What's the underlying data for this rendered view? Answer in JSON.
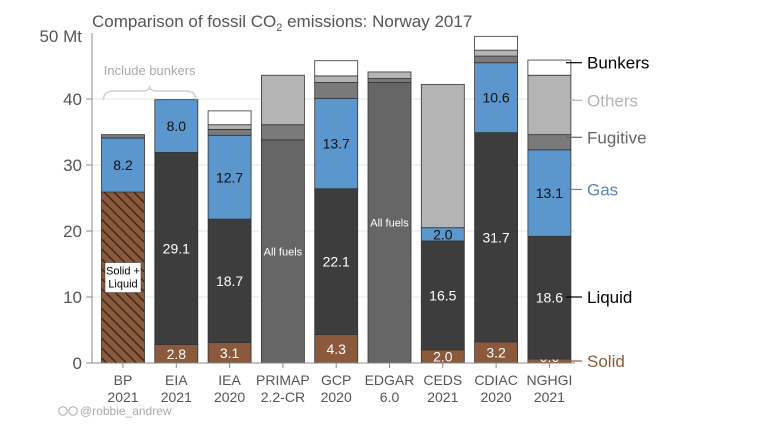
{
  "chart_data": {
    "type": "bar",
    "title_prefix": "Comparison of fossil CO",
    "title_sub": "2",
    "title_suffix": " emissions: Norway 2017",
    "y_unit_label": "50 Mt",
    "ylim": [
      0,
      50
    ],
    "yticks": [
      0,
      10,
      20,
      30,
      40
    ],
    "grid": true,
    "bracket_label": "Include bunkers",
    "credit": "@robbie_andrew",
    "categories": [
      {
        "line1": "BP",
        "line2": "2021"
      },
      {
        "line1": "EIA",
        "line2": "2021"
      },
      {
        "line1": "IEA",
        "line2": "2020"
      },
      {
        "line1": "PRIMAP",
        "line2": "2.2-CR"
      },
      {
        "line1": "GCP",
        "line2": "2020"
      },
      {
        "line1": "EDGAR",
        "line2": "6.0"
      },
      {
        "line1": "CEDS",
        "line2": "2021"
      },
      {
        "line1": "CDIAC",
        "line2": "2020"
      },
      {
        "line1": "NGHGI",
        "line2": "2021"
      }
    ],
    "legend": [
      {
        "name": "Bunkers",
        "color": "#000000",
        "value": 45.5
      },
      {
        "name": "Others",
        "color": "#b4b4b4",
        "value": 39.8
      },
      {
        "name": "Fugitive",
        "color": "#666666",
        "value": 34.2
      },
      {
        "name": "Gas",
        "color": "#5a86b0",
        "value": 26.3
      },
      {
        "name": "Liquid",
        "color": "#000000",
        "value": 10.0
      },
      {
        "name": "Solid",
        "color": "#8b5a3c",
        "value": 0.3
      }
    ],
    "colors": {
      "solid": "#8b5a3c",
      "liquid": "#3d3d3d",
      "gas": "#5b96cc",
      "fugitive": "#7a7a7a",
      "others": "#b4b4b4",
      "bunkers": "#ffffff",
      "allfuels_dark": "#666666",
      "allfuels_light": "#a8a8a8",
      "hatch_bg": "#8b5a3c",
      "hatch_line": "#3d2a1c"
    },
    "series": [
      {
        "cat": 0,
        "segments": [
          {
            "type": "solidliquid",
            "value": 25.9,
            "label": "Solid +\nLiquid"
          },
          {
            "type": "gas",
            "value": 8.2,
            "label": "8.2"
          },
          {
            "type": "fugitive",
            "value": 0.5,
            "label": ""
          }
        ]
      },
      {
        "cat": 1,
        "segments": [
          {
            "type": "solid",
            "value": 2.8,
            "label": "2.8"
          },
          {
            "type": "liquid",
            "value": 29.1,
            "label": "29.1"
          },
          {
            "type": "gas",
            "value": 8.0,
            "label": "8.0"
          }
        ]
      },
      {
        "cat": 2,
        "segments": [
          {
            "type": "solid",
            "value": 3.1,
            "label": "3.1"
          },
          {
            "type": "liquid",
            "value": 18.7,
            "label": "18.7"
          },
          {
            "type": "gas",
            "value": 12.7,
            "label": "12.7"
          },
          {
            "type": "fugitive",
            "value": 0.9,
            "label": ""
          },
          {
            "type": "others",
            "value": 0.7,
            "label": ""
          },
          {
            "type": "bunkers",
            "value": 2.1,
            "label": ""
          }
        ]
      },
      {
        "cat": 3,
        "segments": [
          {
            "type": "allfuels_dark",
            "value": 33.8,
            "label": "All fuels"
          },
          {
            "type": "fugitive",
            "value": 2.3,
            "label": ""
          },
          {
            "type": "others",
            "value": 7.5,
            "label": ""
          }
        ]
      },
      {
        "cat": 4,
        "segments": [
          {
            "type": "solid",
            "value": 4.3,
            "label": "4.3"
          },
          {
            "type": "liquid",
            "value": 22.1,
            "label": "22.1"
          },
          {
            "type": "gas",
            "value": 13.7,
            "label": "13.7"
          },
          {
            "type": "fugitive",
            "value": 2.4,
            "label": ""
          },
          {
            "type": "others",
            "value": 1.0,
            "label": ""
          },
          {
            "type": "bunkers",
            "value": 2.3,
            "label": ""
          }
        ]
      },
      {
        "cat": 5,
        "segments": [
          {
            "type": "allfuels_dark",
            "value": 42.5,
            "label": "All fuels"
          },
          {
            "type": "fugitive",
            "value": 0.6,
            "label": ""
          },
          {
            "type": "others",
            "value": 1.0,
            "label": ""
          }
        ]
      },
      {
        "cat": 6,
        "segments": [
          {
            "type": "solid",
            "value": 2.0,
            "label": "2.0"
          },
          {
            "type": "liquid",
            "value": 16.5,
            "label": "16.5"
          },
          {
            "type": "gas",
            "value": 2.0,
            "label": "2.0"
          },
          {
            "type": "others",
            "value": 21.7,
            "label": ""
          }
        ]
      },
      {
        "cat": 7,
        "segments": [
          {
            "type": "solid",
            "value": 3.2,
            "label": "3.2"
          },
          {
            "type": "liquid",
            "value": 31.7,
            "label": "31.7"
          },
          {
            "type": "gas",
            "value": 10.6,
            "label": "10.6"
          },
          {
            "type": "fugitive",
            "value": 1.0,
            "label": ""
          },
          {
            "type": "others",
            "value": 0.9,
            "label": ""
          },
          {
            "type": "bunkers",
            "value": 2.1,
            "label": ""
          }
        ]
      },
      {
        "cat": 8,
        "segments": [
          {
            "type": "solid",
            "value": 0.6,
            "label": "0.6"
          },
          {
            "type": "liquid",
            "value": 18.6,
            "label": "18.6"
          },
          {
            "type": "gas",
            "value": 13.1,
            "label": "13.1"
          },
          {
            "type": "fugitive",
            "value": 2.3,
            "label": ""
          },
          {
            "type": "others",
            "value": 9.0,
            "label": ""
          },
          {
            "type": "bunkers",
            "value": 2.3,
            "label": ""
          }
        ]
      }
    ]
  }
}
